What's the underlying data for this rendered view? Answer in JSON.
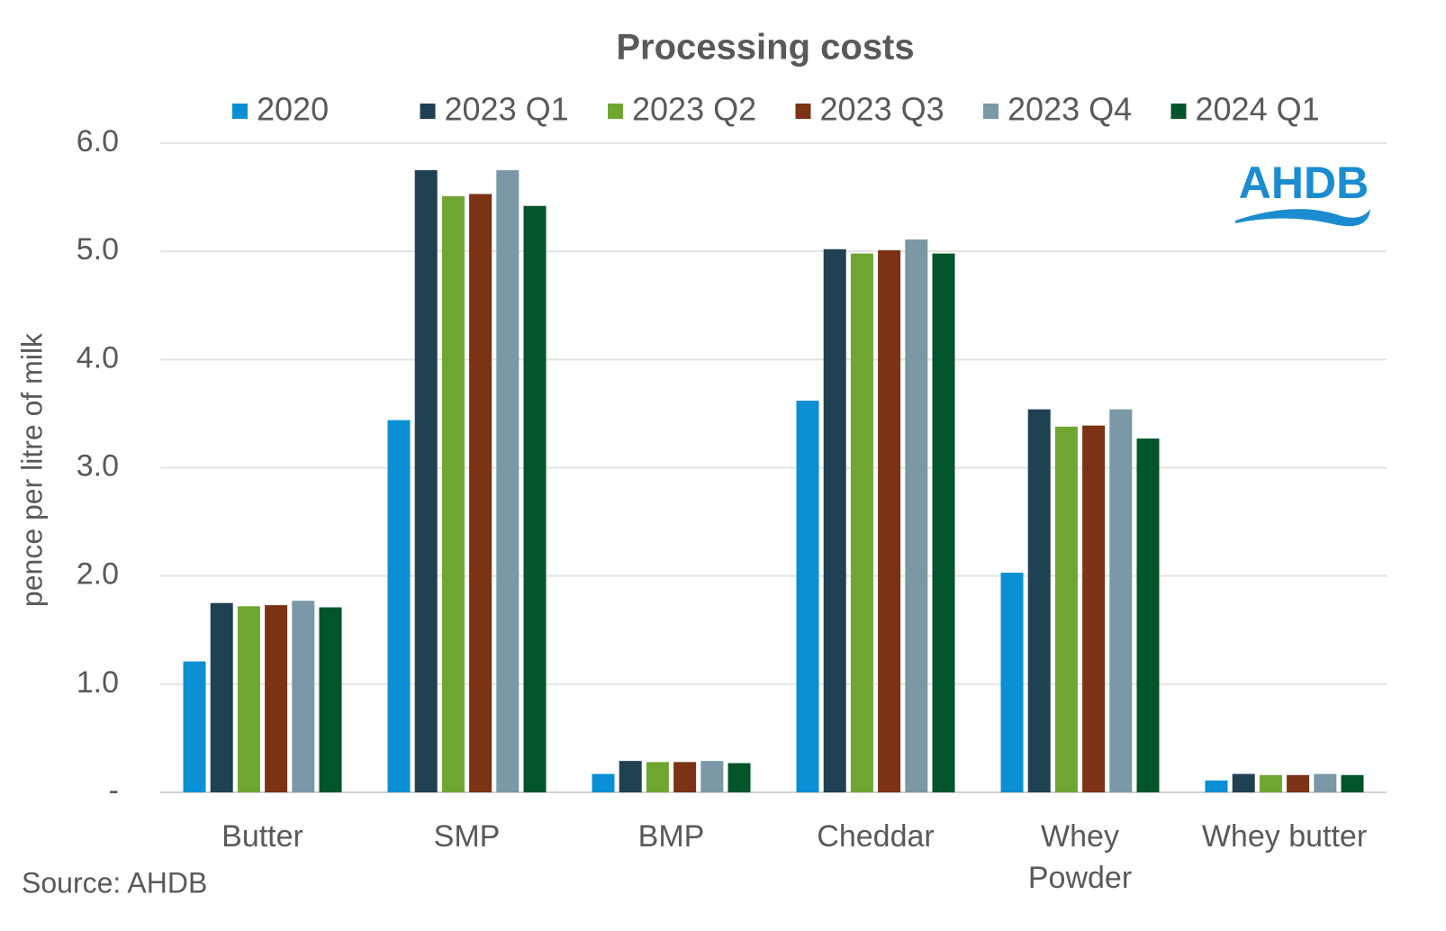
{
  "chart_data": {
    "type": "bar",
    "title": "Processing costs",
    "y_label": "pence per litre of milk",
    "source": "Source: AHDB",
    "logo": "AHDB",
    "categories": [
      "Butter",
      "SMP",
      "BMP",
      "Cheddar",
      "Whey Powder",
      "Whey butter"
    ],
    "series": [
      {
        "name": "2020",
        "color": "#0a8fd4",
        "values": [
          1.21,
          3.44,
          0.17,
          3.62,
          2.03,
          0.11
        ]
      },
      {
        "name": "2023 Q1",
        "color": "#1f4152",
        "values": [
          1.75,
          5.75,
          0.29,
          5.02,
          3.54,
          0.17
        ]
      },
      {
        "name": "2023 Q2",
        "color": "#6fa632",
        "values": [
          1.72,
          5.51,
          0.28,
          4.98,
          3.38,
          0.16
        ]
      },
      {
        "name": "2023 Q3",
        "color": "#7b3215",
        "values": [
          1.73,
          5.53,
          0.28,
          5.01,
          3.39,
          0.16
        ]
      },
      {
        "name": "2023 Q4",
        "color": "#7b98a6",
        "values": [
          1.77,
          5.75,
          0.29,
          5.11,
          3.54,
          0.17
        ]
      },
      {
        "name": "2024 Q1",
        "color": "#02552b",
        "values": [
          1.71,
          5.42,
          0.27,
          4.98,
          3.27,
          0.16
        ]
      }
    ],
    "ylim": [
      0,
      6
    ],
    "yticks": [
      {
        "value": 0,
        "label": "-"
      },
      {
        "value": 1,
        "label": "1.0"
      },
      {
        "value": 2,
        "label": "2.0"
      },
      {
        "value": 3,
        "label": "3.0"
      },
      {
        "value": 4,
        "label": "4.0"
      },
      {
        "value": 5,
        "label": "5.0"
      },
      {
        "value": 6,
        "label": "6.0"
      }
    ],
    "grid": true,
    "legend": "top"
  }
}
